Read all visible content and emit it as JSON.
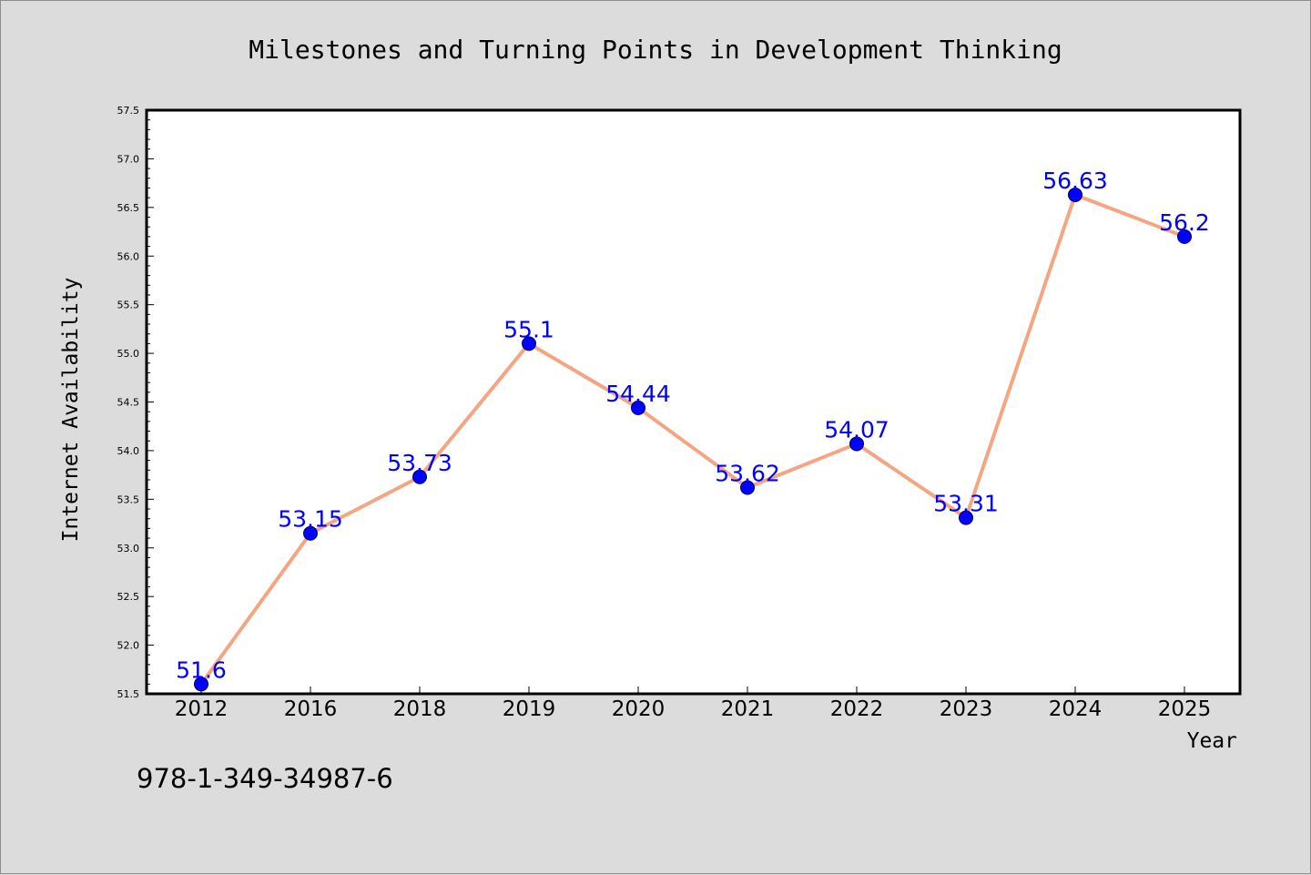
{
  "chart_data": {
    "type": "line",
    "title": "Milestones and Turning Points in Development Thinking",
    "xlabel": "Year",
    "ylabel": "Internet Availability",
    "categories": [
      "2012",
      "2016",
      "2018",
      "2019",
      "2020",
      "2021",
      "2022",
      "2023",
      "2024",
      "2025"
    ],
    "values": [
      51.6,
      53.15,
      53.73,
      55.1,
      54.44,
      53.62,
      54.07,
      53.31,
      56.63,
      56.2
    ],
    "data_labels": [
      "51.6",
      "53.15",
      "53.73",
      "55.1",
      "54.44",
      "53.62",
      "54.07",
      "53.31",
      "56.63",
      "56.2"
    ],
    "ylim": [
      51.5,
      57.5
    ],
    "yticks": [
      "51.5",
      "52.0",
      "52.5",
      "53.0",
      "53.5",
      "54.0",
      "54.5",
      "55.0",
      "55.5",
      "56.0",
      "56.5",
      "57.0",
      "57.5"
    ],
    "grid": false,
    "line_color": "#f4a582",
    "marker_color": "#0000ff",
    "label_color": "#0000ff"
  },
  "footer": {
    "isbn": "978-1-349-34987-6"
  }
}
